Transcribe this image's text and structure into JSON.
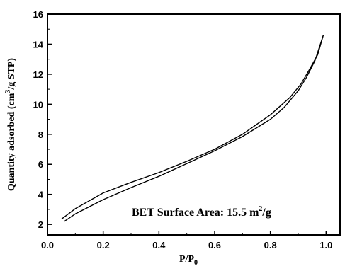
{
  "chart_data": {
    "type": "line",
    "title": "",
    "xlabel": {
      "main": "P/P",
      "subscript": "0"
    },
    "ylabel": {
      "before": "Quantity adsorbed (cm",
      "superscript": "3",
      "after": "/g STP)"
    },
    "xlim": [
      0.0,
      1.05
    ],
    "ylim": [
      1.3,
      16
    ],
    "x_ticks": [
      0.0,
      0.2,
      0.4,
      0.6,
      0.8,
      1.0
    ],
    "x_tick_labels": [
      "0.0",
      "0.2",
      "0.4",
      "0.6",
      "0.8",
      "1.0"
    ],
    "y_ticks": [
      2,
      4,
      6,
      8,
      10,
      12,
      14,
      16
    ],
    "y_tick_labels": [
      "2",
      "4",
      "6",
      "8",
      "10",
      "12",
      "14",
      "16"
    ],
    "annotation": {
      "before": "BET Surface Area: 15.5 m",
      "superscript": "2",
      "after": "/g"
    },
    "grid": false,
    "legend": "none",
    "line_color": "#000000",
    "series": [
      {
        "points": [
          [
            0.06,
            2.2
          ],
          [
            0.1,
            2.7
          ],
          [
            0.2,
            3.65
          ],
          [
            0.3,
            4.45
          ],
          [
            0.4,
            5.2
          ],
          [
            0.5,
            6.05
          ],
          [
            0.6,
            6.9
          ],
          [
            0.7,
            7.85
          ],
          [
            0.8,
            9.0
          ],
          [
            0.85,
            9.8
          ],
          [
            0.9,
            10.9
          ],
          [
            0.93,
            11.8
          ],
          [
            0.96,
            12.9
          ],
          [
            0.99,
            14.6
          ]
        ]
      },
      {
        "points": [
          [
            0.99,
            14.6
          ],
          [
            0.97,
            13.3
          ],
          [
            0.94,
            12.3
          ],
          [
            0.91,
            11.35
          ],
          [
            0.87,
            10.45
          ],
          [
            0.8,
            9.3
          ],
          [
            0.7,
            8.0
          ],
          [
            0.6,
            7.0
          ],
          [
            0.5,
            6.2
          ],
          [
            0.4,
            5.45
          ],
          [
            0.3,
            4.8
          ],
          [
            0.2,
            4.1
          ],
          [
            0.1,
            3.05
          ],
          [
            0.05,
            2.35
          ]
        ]
      }
    ]
  }
}
